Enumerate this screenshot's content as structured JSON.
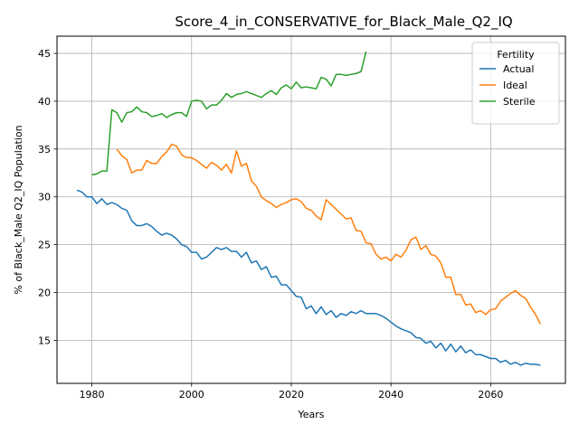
{
  "chart_data": {
    "type": "line",
    "title": "Score_4_in_CONSERVATIVE_for_Black_Male_Q2_IQ",
    "xlabel": "Years",
    "ylabel": "% of Black_Male Q2_IQ Population",
    "xlim": [
      1973,
      2075
    ],
    "ylim": [
      10.5,
      46.8
    ],
    "xticks": [
      1980,
      2000,
      2020,
      2040,
      2060
    ],
    "yticks": [
      15,
      20,
      25,
      30,
      35,
      40,
      45
    ],
    "grid": true,
    "legend": {
      "title": "Fertility",
      "placement": "top-right"
    },
    "series": [
      {
        "name": "Actual",
        "color": "#1f77b4",
        "x": [
          1977,
          1978,
          1979,
          1980,
          1981,
          1982,
          1983,
          1984,
          1985,
          1986,
          1987,
          1988,
          1989,
          1990,
          1991,
          1992,
          1993,
          1994,
          1995,
          1996,
          1997,
          1998,
          1999,
          2000,
          2001,
          2002,
          2003,
          2004,
          2005,
          2006,
          2007,
          2008,
          2009,
          2010,
          2011,
          2012,
          2013,
          2014,
          2015,
          2016,
          2017,
          2018,
          2019,
          2020,
          2021,
          2022,
          2023,
          2024,
          2025,
          2026,
          2027,
          2028,
          2029,
          2030,
          2031,
          2032,
          2033,
          2034,
          2035,
          2036,
          2037,
          2038,
          2039,
          2040,
          2041,
          2042,
          2043,
          2044,
          2045,
          2046,
          2047,
          2048,
          2049,
          2050,
          2051,
          2052,
          2053,
          2054,
          2055,
          2056,
          2057,
          2058,
          2059,
          2060,
          2061,
          2062,
          2063,
          2064,
          2065,
          2066,
          2067,
          2068,
          2069,
          2070
        ],
        "values": [
          30.7,
          30.5,
          30.0,
          30.0,
          29.3,
          29.8,
          29.2,
          29.4,
          29.2,
          28.8,
          28.6,
          27.5,
          27.0,
          27.0,
          27.2,
          26.9,
          26.4,
          26.0,
          26.2,
          26.0,
          25.6,
          25.0,
          24.8,
          24.2,
          24.2,
          23.5,
          23.7,
          24.2,
          24.7,
          24.5,
          24.7,
          24.3,
          24.3,
          23.7,
          24.2,
          23.1,
          23.3,
          22.4,
          22.7,
          21.6,
          21.7,
          20.8,
          20.8,
          20.2,
          19.6,
          19.5,
          18.3,
          18.6,
          17.8,
          18.5,
          17.7,
          18.1,
          17.4,
          17.8,
          17.6,
          18.0,
          17.8,
          18.1,
          17.8,
          17.8,
          17.8,
          17.6,
          17.3,
          16.9,
          16.5,
          16.2,
          16.0,
          15.8,
          15.3,
          15.2,
          14.7,
          14.9,
          14.2,
          14.7,
          13.9,
          14.6,
          13.8,
          14.4,
          13.7,
          14.0,
          13.5,
          13.5,
          13.3,
          13.1,
          13.1,
          12.7,
          12.9,
          12.5,
          12.7,
          12.4,
          12.6,
          12.5,
          12.5,
          12.4
        ]
      },
      {
        "name": "Ideal",
        "color": "#ff7f0e",
        "x": [
          1985,
          1986,
          1987,
          1988,
          1989,
          1990,
          1991,
          1992,
          1993,
          1994,
          1995,
          1996,
          1997,
          1998,
          1999,
          2000,
          2001,
          2002,
          2003,
          2004,
          2005,
          2006,
          2007,
          2008,
          2009,
          2010,
          2011,
          2012,
          2013,
          2014,
          2015,
          2016,
          2017,
          2018,
          2019,
          2020,
          2021,
          2022,
          2023,
          2024,
          2025,
          2026,
          2027,
          2028,
          2029,
          2030,
          2031,
          2032,
          2033,
          2034,
          2035,
          2036,
          2037,
          2038,
          2039,
          2040,
          2041,
          2042,
          2043,
          2044,
          2045,
          2046,
          2047,
          2048,
          2049,
          2050,
          2051,
          2052,
          2053,
          2054,
          2055,
          2056,
          2057,
          2058,
          2059,
          2060,
          2061,
          2062,
          2063,
          2064,
          2065,
          2066,
          2067,
          2068,
          2069,
          2070
        ],
        "values": [
          35.0,
          34.3,
          33.9,
          32.5,
          32.8,
          32.8,
          33.8,
          33.5,
          33.5,
          34.2,
          34.7,
          35.5,
          35.3,
          34.4,
          34.1,
          34.1,
          33.8,
          33.4,
          33.0,
          33.6,
          33.3,
          32.8,
          33.4,
          32.5,
          34.8,
          33.2,
          33.5,
          31.7,
          31.1,
          30.0,
          29.6,
          29.3,
          28.9,
          29.2,
          29.4,
          29.7,
          29.8,
          29.5,
          28.8,
          28.6,
          28.0,
          27.6,
          29.7,
          29.2,
          28.7,
          28.2,
          27.7,
          27.8,
          26.5,
          26.4,
          25.2,
          25.1,
          24.0,
          23.5,
          23.7,
          23.3,
          24.0,
          23.7,
          24.4,
          25.5,
          25.8,
          24.5,
          24.9,
          24.0,
          23.8,
          23.1,
          21.6,
          21.6,
          19.8,
          19.8,
          18.7,
          18.8,
          17.9,
          18.1,
          17.7,
          18.2,
          18.3,
          19.1,
          19.5,
          19.9,
          20.2,
          19.7,
          19.4,
          18.5,
          17.7,
          16.7
        ]
      },
      {
        "name": "Sterile",
        "color": "#2ca02c",
        "x": [
          1980,
          1981,
          1982,
          1983,
          1984,
          1985,
          1986,
          1987,
          1988,
          1989,
          1990,
          1991,
          1992,
          1993,
          1994,
          1995,
          1996,
          1997,
          1998,
          1999,
          2000,
          2001,
          2002,
          2003,
          2004,
          2005,
          2006,
          2007,
          2008,
          2009,
          2010,
          2011,
          2012,
          2013,
          2014,
          2015,
          2016,
          2017,
          2018,
          2019,
          2020,
          2021,
          2022,
          2023,
          2024,
          2025,
          2026,
          2027,
          2028,
          2029,
          2030,
          2031,
          2032,
          2033,
          2034,
          2035
        ],
        "values": [
          32.3,
          32.4,
          32.7,
          32.7,
          39.1,
          38.8,
          37.8,
          38.8,
          38.9,
          39.4,
          38.9,
          38.8,
          38.4,
          38.5,
          38.7,
          38.3,
          38.6,
          38.8,
          38.8,
          38.4,
          40.0,
          40.1,
          40.0,
          39.2,
          39.6,
          39.6,
          40.1,
          40.8,
          40.4,
          40.7,
          40.8,
          41.0,
          40.8,
          40.6,
          40.4,
          40.8,
          41.1,
          40.7,
          41.4,
          41.7,
          41.3,
          42.0,
          41.4,
          41.5,
          41.4,
          41.3,
          42.5,
          42.3,
          41.6,
          42.8,
          42.8,
          42.7,
          42.8,
          42.9,
          43.1,
          45.2
        ]
      }
    ]
  }
}
